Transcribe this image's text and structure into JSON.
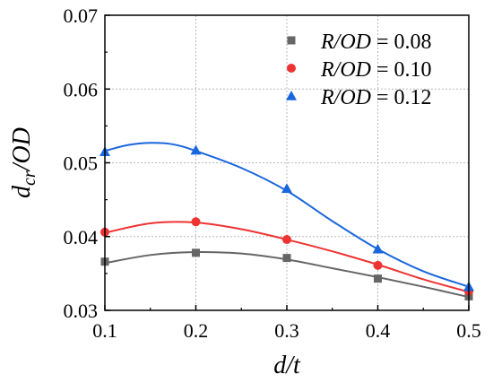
{
  "chart_data": {
    "type": "line",
    "xlabel": "d/t",
    "ylabel": "d_cr/OD",
    "xlim": [
      0.1,
      0.5
    ],
    "ylim": [
      0.03,
      0.07
    ],
    "xticks": [
      0.1,
      0.2,
      0.3,
      0.4,
      0.5
    ],
    "yticks": [
      0.03,
      0.04,
      0.05,
      0.06,
      0.07
    ],
    "xtick_labels": [
      "0.1",
      "0.2",
      "0.3",
      "0.4",
      "0.5"
    ],
    "ytick_labels": [
      "0.03",
      "0.04",
      "0.05",
      "0.06",
      "0.07"
    ],
    "grid": true,
    "legend_position": "top-right",
    "series": [
      {
        "name": "R/OD = 0.08",
        "marker": "square",
        "color": "#666666",
        "x": [
          0.1,
          0.2,
          0.3,
          0.4,
          0.5
        ],
        "y": [
          0.0366,
          0.0378,
          0.0371,
          0.0343,
          0.0319
        ],
        "fit_x": [
          0.1,
          0.15,
          0.2,
          0.25,
          0.3,
          0.35,
          0.4,
          0.45,
          0.5
        ],
        "fit_y": [
          0.0364,
          0.0375,
          0.0379,
          0.0377,
          0.0369,
          0.0357,
          0.0345,
          0.0332,
          0.0318
        ]
      },
      {
        "name": "R/OD = 0.10",
        "marker": "circle",
        "color": "#ee3333",
        "x": [
          0.1,
          0.2,
          0.3,
          0.4,
          0.5
        ],
        "y": [
          0.0406,
          0.042,
          0.0396,
          0.0361,
          0.0326
        ],
        "fit_x": [
          0.1,
          0.15,
          0.2,
          0.25,
          0.3,
          0.35,
          0.4,
          0.45,
          0.5
        ],
        "fit_y": [
          0.0405,
          0.0418,
          0.0419,
          0.041,
          0.0396,
          0.038,
          0.0362,
          0.0342,
          0.0325
        ]
      },
      {
        "name": "R/OD = 0.12",
        "marker": "triangle",
        "color": "#1a66dd",
        "x": [
          0.1,
          0.2,
          0.3,
          0.4,
          0.5
        ],
        "y": [
          0.0515,
          0.0517,
          0.0465,
          0.0383,
          0.0332
        ],
        "fit_x": [
          0.1,
          0.125,
          0.15,
          0.175,
          0.2,
          0.25,
          0.3,
          0.35,
          0.4,
          0.45,
          0.5
        ],
        "fit_y": [
          0.0516,
          0.0524,
          0.0527,
          0.0525,
          0.0516,
          0.0493,
          0.0462,
          0.0421,
          0.0383,
          0.0353,
          0.0332
        ]
      }
    ]
  }
}
